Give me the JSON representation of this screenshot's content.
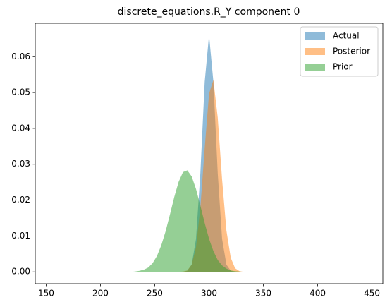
{
  "chart_data": {
    "type": "area",
    "title": "discrete_equations.R_Y component 0",
    "x": [
      220,
      224,
      228,
      232,
      236,
      240,
      244,
      248,
      252,
      256,
      260,
      264,
      268,
      272,
      276,
      280,
      284,
      288,
      292,
      296,
      300,
      304,
      308,
      312,
      316,
      320,
      324,
      328,
      332,
      336,
      340
    ],
    "series": [
      {
        "name": "Actual",
        "color": "#1f77b4",
        "values": [
          0,
          0,
          0,
          0,
          0,
          0,
          0,
          0,
          0,
          0,
          0,
          0,
          0,
          0,
          0,
          0.0003,
          0.002,
          0.0092,
          0.0275,
          0.053,
          0.066,
          0.053,
          0.0275,
          0.0092,
          0.002,
          0.0003,
          0,
          0,
          0,
          0,
          0
        ]
      },
      {
        "name": "Posterior",
        "color": "#ff7f0e",
        "values": [
          0,
          0,
          0,
          0,
          0,
          0,
          0,
          0,
          0,
          0,
          0,
          0,
          0,
          0,
          0.0001,
          0.0004,
          0.002,
          0.0069,
          0.0179,
          0.0345,
          0.0497,
          0.0535,
          0.043,
          0.0258,
          0.0115,
          0.0039,
          0.001,
          0.0002,
          0,
          0,
          0
        ]
      },
      {
        "name": "Prior",
        "color": "#2ca02c",
        "values": [
          0,
          0,
          0,
          0.0001,
          0.0003,
          0.0006,
          0.0012,
          0.0024,
          0.0044,
          0.0074,
          0.0113,
          0.016,
          0.0209,
          0.0251,
          0.0278,
          0.0283,
          0.0266,
          0.0231,
          0.0185,
          0.0136,
          0.0092,
          0.0058,
          0.0033,
          0.0018,
          0.0009,
          0.0004,
          0.0002,
          0.0001,
          0,
          0,
          0
        ]
      }
    ],
    "opacity": 0.5,
    "xlim": [
      140,
      460
    ],
    "ylim": [
      -0.0033,
      0.0693
    ],
    "xticks": [
      150,
      200,
      250,
      300,
      350,
      400,
      450
    ],
    "yticks": [
      {
        "value": 0,
        "label": "0.00"
      },
      0.01,
      0.02,
      0.03,
      0.04,
      0.05,
      0.06
    ],
    "grid": false,
    "legend": "upper right"
  }
}
